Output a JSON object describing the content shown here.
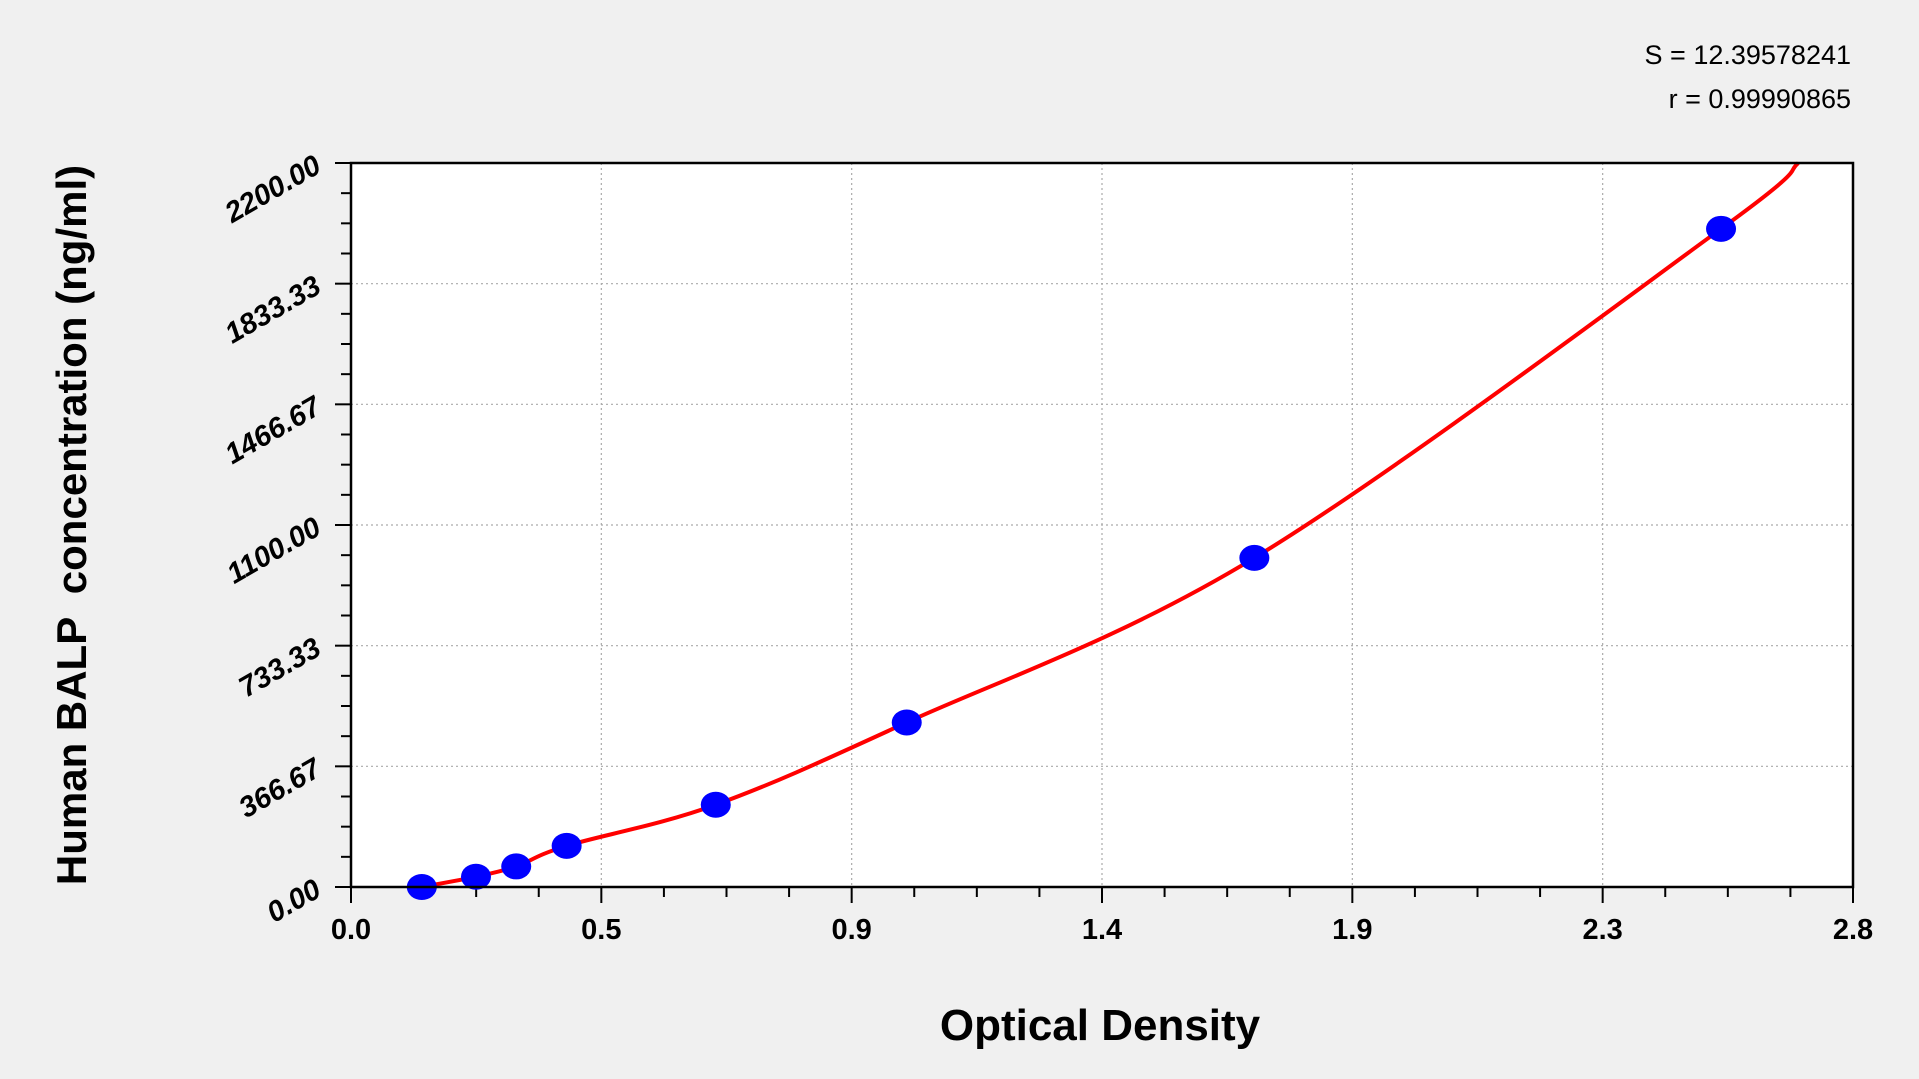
{
  "chart_data": {
    "type": "scatter",
    "title": "",
    "xlabel": "Optical Density",
    "ylabel": "Human BALP  concentration (ng/ml)",
    "xlim": [
      0.0,
      2.8
    ],
    "ylim": [
      0.0,
      2200.0
    ],
    "x_ticks": [
      "0.0",
      "0.5",
      "0.9",
      "1.4",
      "1.9",
      "2.3",
      "2.8"
    ],
    "y_ticks": [
      "0.00",
      "366.67",
      "733.33",
      "1100.00",
      "1466.67",
      "1833.33",
      "2200.00"
    ],
    "grid": true,
    "annotations": {
      "s": "S = 12.39578241",
      "r": "r = 0.99990865"
    },
    "points": {
      "x": [
        0.132,
        0.233,
        0.308,
        0.402,
        0.68,
        1.036,
        1.684,
        2.554
      ],
      "y": [
        0,
        31.25,
        62.5,
        125,
        250,
        500,
        1000,
        2000
      ],
      "color": "#0000ff"
    },
    "fit_curve": {
      "x": [
        0.132,
        0.233,
        0.308,
        0.402,
        0.68,
        1.036,
        1.684,
        2.554,
        2.698
      ],
      "y": [
        0,
        31.25,
        62.5,
        125,
        250,
        500,
        1000,
        2000,
        2200
      ],
      "color": "#ff0000"
    }
  }
}
